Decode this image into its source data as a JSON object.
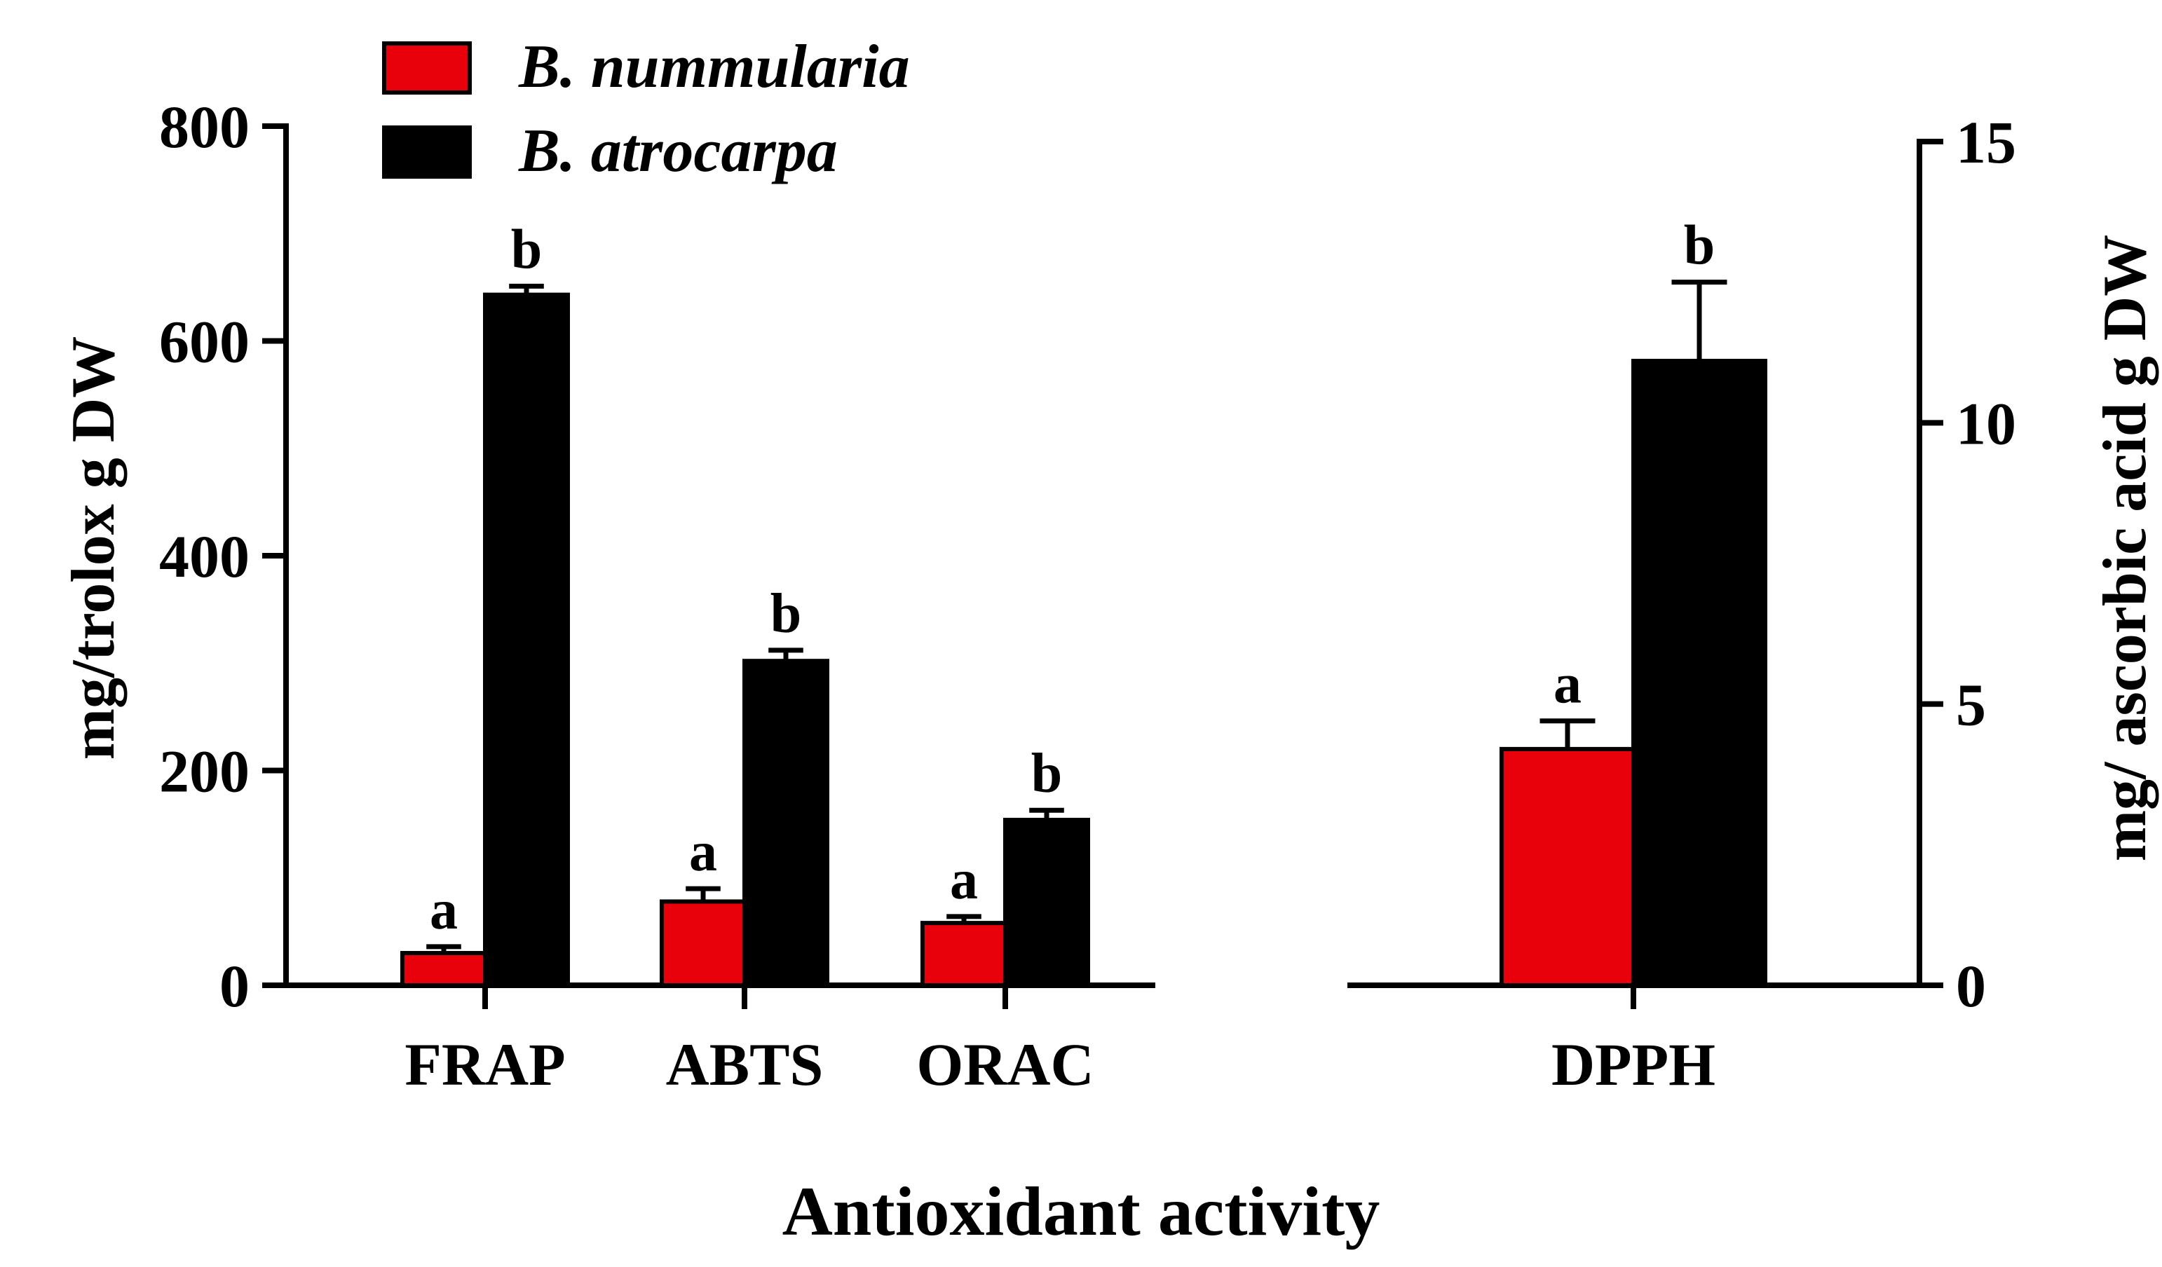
{
  "colors": {
    "series_1": "#e8000b",
    "series_2": "#000000",
    "axis": "#000000",
    "background": "#ffffff"
  },
  "chart_data": [
    {
      "type": "bar",
      "panel": "left",
      "categories": [
        "FRAP",
        "ABTS",
        "ORAC"
      ],
      "series": [
        {
          "name": "B. nummularia",
          "values": [
            30,
            78,
            58
          ],
          "errors": [
            6,
            12,
            6
          ],
          "letters": [
            "a",
            "a",
            "a"
          ]
        },
        {
          "name": "B. atrocarpa",
          "values": [
            643,
            302,
            154
          ],
          "errors": [
            8,
            10,
            9
          ],
          "letters": [
            "b",
            "b",
            "b"
          ]
        }
      ],
      "ylabel": "mg/trolox g DW",
      "ylim": [
        0,
        800
      ],
      "yticks": [
        0,
        200,
        400,
        600,
        800
      ],
      "legend_position": "top-left"
    },
    {
      "type": "bar",
      "panel": "right",
      "categories": [
        "DPPH"
      ],
      "series": [
        {
          "name": "B. nummularia",
          "values": [
            4.2
          ],
          "errors": [
            0.5
          ],
          "letters": [
            "a"
          ]
        },
        {
          "name": "B. atrocarpa",
          "values": [
            11.1
          ],
          "errors": [
            1.4
          ],
          "letters": [
            "b"
          ]
        }
      ],
      "ylabel": "mg/ ascorbic acid g DW",
      "ylim": [
        0,
        15
      ],
      "yticks": [
        0,
        5,
        10,
        15
      ],
      "axis_side": "right"
    }
  ],
  "xlabel": "Antioxidant activity",
  "legend": [
    {
      "name": "B. nummularia"
    },
    {
      "name": "B. atrocarpa"
    }
  ]
}
